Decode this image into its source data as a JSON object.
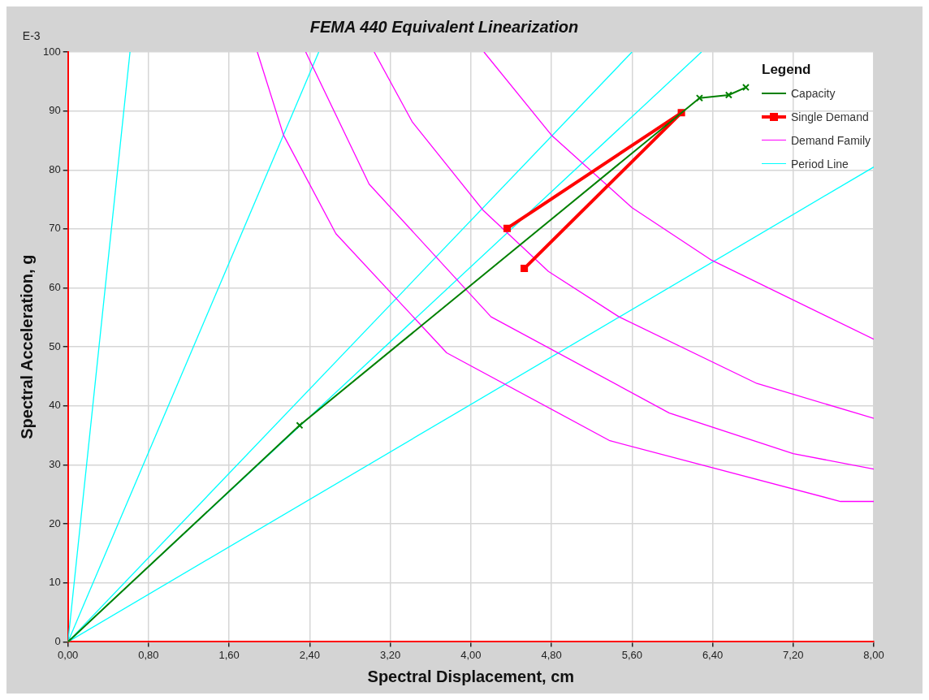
{
  "chart_data": {
    "type": "line",
    "title": "FEMA 440 Equivalent Linearization",
    "xlabel": "Spectral Displacement, cm",
    "ylabel": "Spectral Acceleration, g",
    "annotations": [
      "E-3"
    ],
    "legend_title": "Legend",
    "legend": "top right",
    "grid": true,
    "xlim": [
      0,
      8
    ],
    "ylim": [
      0,
      100
    ],
    "xticks": [
      {
        "value": 0,
        "label": "0,00"
      },
      {
        "value": 0.8,
        "label": "0,80"
      },
      {
        "value": 1.6,
        "label": "1,60"
      },
      {
        "value": 2.4,
        "label": "2,40"
      },
      {
        "value": 3.2,
        "label": "3,20"
      },
      {
        "value": 4,
        "label": "4,00"
      },
      {
        "value": 4.8,
        "label": "4,80"
      },
      {
        "value": 5.6,
        "label": "5,60"
      },
      {
        "value": 6.4,
        "label": "6,40"
      },
      {
        "value": 7.2,
        "label": "7,20"
      },
      {
        "value": 8,
        "label": "8,00"
      }
    ],
    "yticks": [
      0,
      10,
      20,
      30,
      40,
      50,
      60,
      70,
      80,
      90,
      100
    ],
    "series": [
      {
        "name": "Capacity",
        "color": "#008000",
        "marker": "cross",
        "x": [
          0,
          2.3,
          6.27,
          6.56,
          6.73
        ],
        "values": [
          0,
          36.7,
          92.2,
          92.7,
          94
        ]
      },
      {
        "name": "Single Demand",
        "color": "#ff0000",
        "marker": "square",
        "x": [
          4.36,
          6.09,
          4.53
        ],
        "values": [
          70.1,
          89.7,
          63.3
        ]
      },
      {
        "name": "Demand Family",
        "color": "#ff00ff",
        "x": [
          1.88,
          2.14,
          2.66,
          3.76,
          5.38,
          7.67,
          8
        ],
        "values": [
          100,
          85.9,
          69.2,
          49,
          34.1,
          23.8,
          23.8
        ]
      },
      {
        "color": "#ff00ff",
        "x": [
          2.36,
          2.99,
          4.2,
          5.97,
          7.2,
          8
        ],
        "values": [
          100,
          77.6,
          55.1,
          38.8,
          31.9,
          29.3
        ]
      },
      {
        "color": "#ff00ff",
        "x": [
          4.13,
          4.8,
          5.6,
          6.39,
          8
        ],
        "values": [
          100,
          85.9,
          73.6,
          64.7,
          51.3
        ]
      },
      {
        "color": "#ff00ff",
        "x": [
          3.04,
          3.42,
          4.12,
          4.77,
          5.47,
          6.84,
          8
        ],
        "values": [
          100,
          88.1,
          73.2,
          62.8,
          55.1,
          43.8,
          37.9
        ]
      },
      {
        "name": "Period Line",
        "color": "#00ffff",
        "x": [
          0,
          0.616
        ],
        "values": [
          0,
          100
        ]
      },
      {
        "color": "#00ffff",
        "x": [
          0,
          2.49
        ],
        "values": [
          0,
          100
        ]
      },
      {
        "color": "#00ffff",
        "x": [
          0,
          5.6
        ],
        "values": [
          0,
          100
        ]
      },
      {
        "color": "#00ffff",
        "x": [
          0,
          6.29
        ],
        "values": [
          0,
          100
        ]
      },
      {
        "color": "#00ffff",
        "x": [
          0,
          8
        ],
        "values": [
          0,
          80.5
        ]
      }
    ]
  }
}
